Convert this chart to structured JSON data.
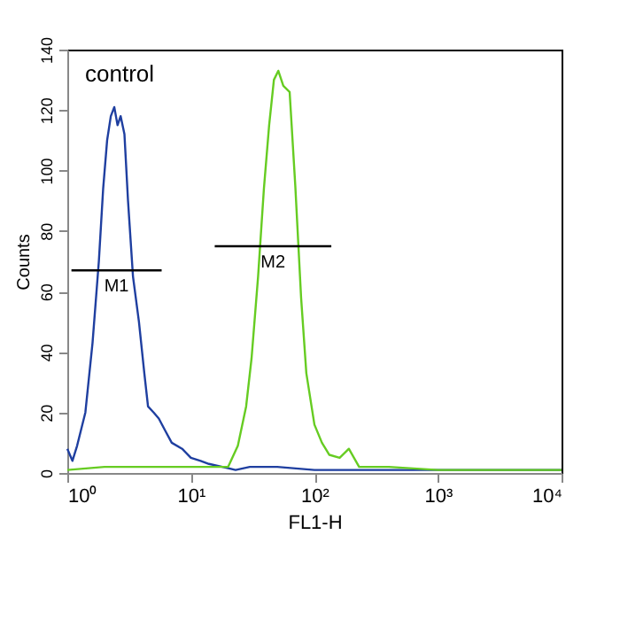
{
  "chart_data": {
    "type": "line",
    "xlabel": "FL1-H",
    "ylabel": "Counts",
    "log": "x",
    "xlim": [
      1,
      10000
    ],
    "xticks": [
      {
        "value": 1,
        "label": "10⁰"
      },
      {
        "value": 10,
        "label": "10¹"
      },
      {
        "value": 100,
        "label": "10²"
      },
      {
        "value": 1000,
        "label": "10³"
      },
      {
        "value": 10000,
        "label": "10⁴"
      }
    ],
    "ylim": [
      0,
      140
    ],
    "yticks": [
      0,
      20,
      40,
      60,
      80,
      100,
      120,
      140
    ],
    "grid": false,
    "series": [
      {
        "color": "#1f3fa0",
        "x": [
          1,
          1.1,
          1.2,
          1.4,
          1.6,
          1.8,
          1.95,
          2.1,
          2.25,
          2.4,
          2.55,
          2.7,
          2.9,
          3.1,
          3.4,
          3.8,
          4.2,
          4.5,
          5,
          5.5,
          6.2,
          7,
          8.5,
          10,
          12,
          14,
          18,
          23,
          30,
          50,
          100,
          300,
          1000,
          3000,
          10000
        ],
        "values": [
          8,
          4,
          9,
          20,
          43,
          70,
          94,
          110,
          118,
          121,
          115,
          118,
          112,
          90,
          65,
          50,
          33,
          22,
          20,
          18,
          14,
          10,
          8,
          5,
          4,
          3,
          2,
          1,
          2,
          2,
          1,
          1,
          1,
          1,
          1
        ]
      },
      {
        "color": "#66cc22",
        "x": [
          1,
          2,
          5,
          10,
          15,
          20,
          24,
          28,
          31,
          35,
          39,
          43,
          47,
          51,
          56,
          63,
          70,
          78,
          86,
          100,
          115,
          132,
          160,
          190,
          230,
          400,
          1000,
          3000,
          10000
        ],
        "values": [
          1,
          2,
          2,
          2,
          2,
          2,
          9,
          22,
          38,
          65,
          94,
          115,
          130,
          133,
          128,
          126,
          95,
          58,
          33,
          16,
          10,
          6,
          5,
          8,
          2,
          2,
          1,
          1,
          1
        ]
      },
      {
        "type": "line",
        "name": "M1",
        "color": "#000000",
        "x": [
          1.08,
          5.8
        ],
        "values": [
          67,
          67
        ]
      },
      {
        "type": "line",
        "name": "M2",
        "color": "#000000",
        "x": [
          15.6,
          137
        ],
        "values": [
          75,
          75
        ]
      }
    ],
    "annotations": [
      "control"
    ]
  }
}
